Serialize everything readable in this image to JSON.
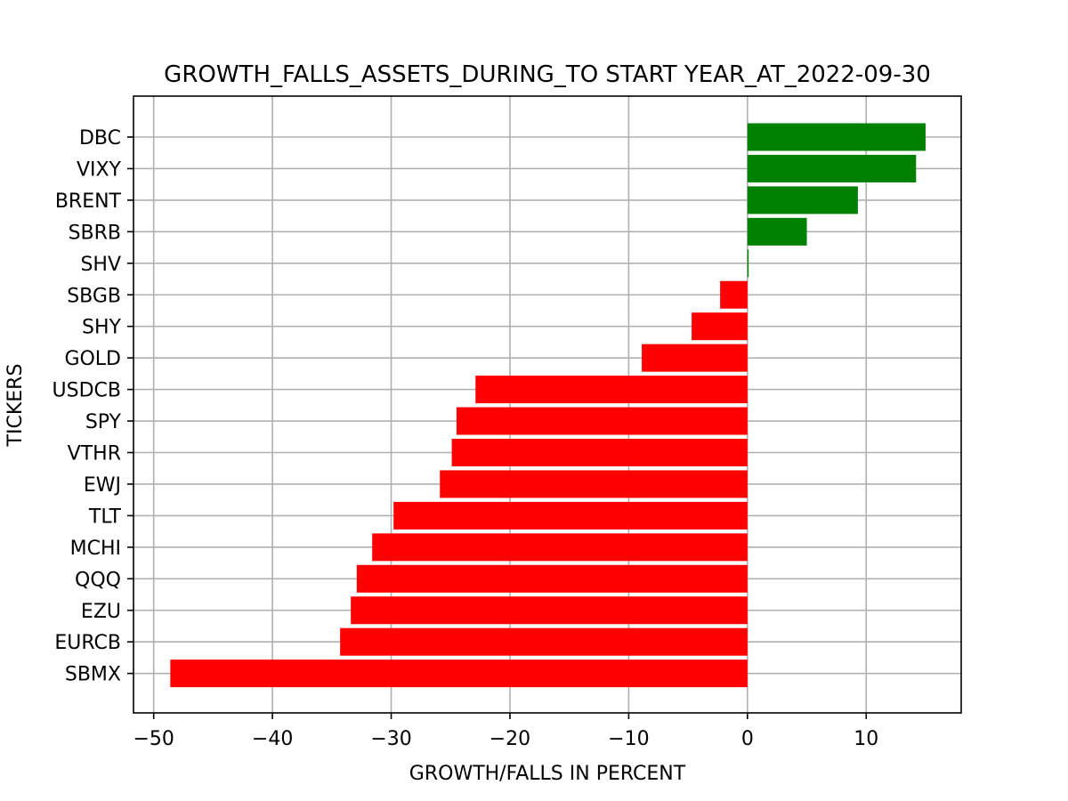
{
  "chart_data": {
    "type": "bar",
    "orientation": "horizontal",
    "title": "GROWTH_FALLS_ASSETS_DURING_TO START YEAR_AT_2022-09-30",
    "xlabel": "GROWTH/FALLS IN PERCENT",
    "ylabel": "TICKERS",
    "xlim": [
      -51.7,
      18.0
    ],
    "xticks": [
      -50,
      -40,
      -30,
      -20,
      -10,
      0,
      10
    ],
    "xtick_labels": [
      "−50",
      "−40",
      "−30",
      "−20",
      "−10",
      "0",
      "10"
    ],
    "grid": true,
    "positive_color": "#008000",
    "negative_color": "#ff0000",
    "categories": [
      "DBC",
      "VIXY",
      "BRENT",
      "SBRB",
      "SHV",
      "SBGB",
      "SHY",
      "GOLD",
      "USDCB",
      "SPY",
      "VTHR",
      "EWJ",
      "TLT",
      "MCHI",
      "QQQ",
      "EZU",
      "EURCB",
      "SBMX"
    ],
    "values": [
      15.0,
      14.2,
      9.3,
      5.0,
      0.1,
      -2.3,
      -4.7,
      -8.9,
      -22.9,
      -24.5,
      -24.9,
      -25.9,
      -29.8,
      -31.6,
      -32.9,
      -33.4,
      -34.3,
      -48.6
    ]
  }
}
